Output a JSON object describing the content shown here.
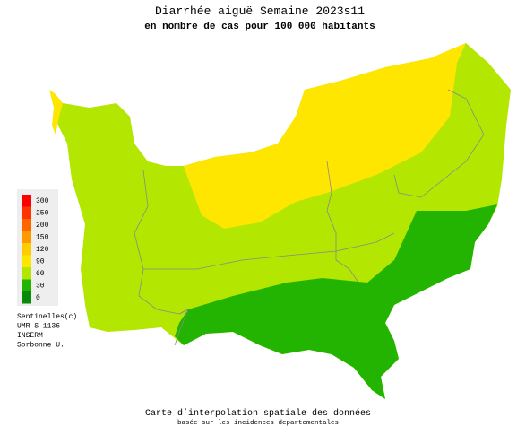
{
  "header": {
    "title": "Diarrhée aiguë Semaine 2023s11",
    "subtitle": "en nombre de cas pour 100 000 habitants"
  },
  "legend": {
    "items": [
      {
        "value": 300,
        "color": "#ff0000"
      },
      {
        "value": 250,
        "color": "#ff3300"
      },
      {
        "value": 200,
        "color": "#ff6600"
      },
      {
        "value": 150,
        "color": "#ff9900"
      },
      {
        "value": 120,
        "color": "#ffcc00"
      },
      {
        "value": 90,
        "color": "#ffe600"
      },
      {
        "value": 60,
        "color": "#b3e600"
      },
      {
        "value": 30,
        "color": "#22b400"
      },
      {
        "value": 0,
        "color": "#0a8a0a"
      }
    ]
  },
  "credits": [
    "Sentinelles(c)",
    "UMR S 1136",
    "INSERM",
    "Sorbonne U."
  ],
  "footer": {
    "line1": "Carte d’interpolation spatiale des données",
    "line2": "basée sur les incidences departementales"
  }
}
